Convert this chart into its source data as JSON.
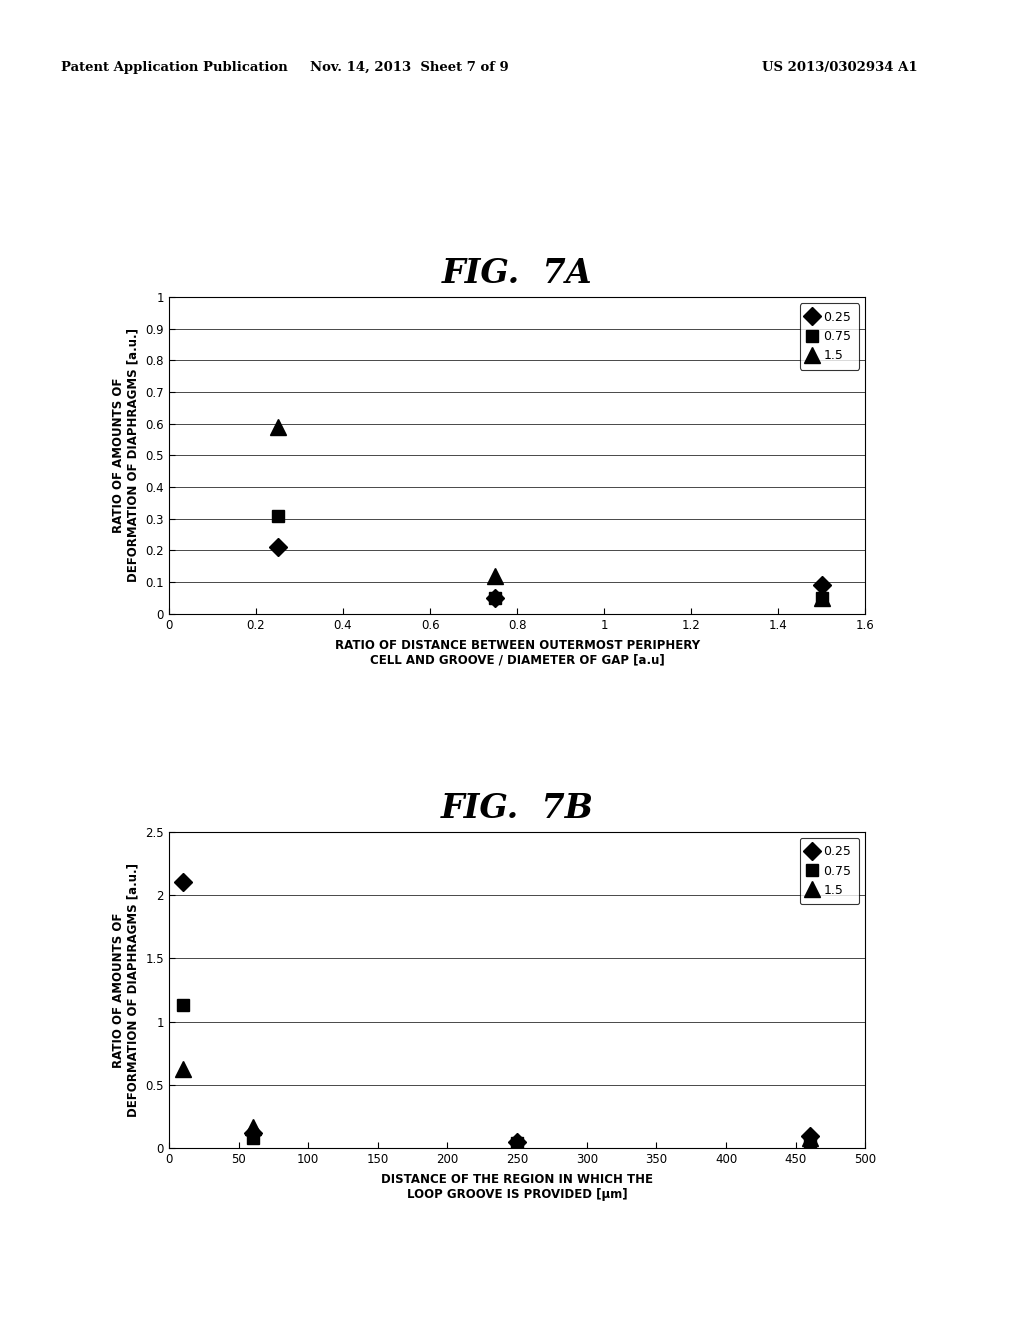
{
  "header_left": "Patent Application Publication",
  "header_middle": "Nov. 14, 2013  Sheet 7 of 9",
  "header_right": "US 2013/0302934 A1",
  "fig7a": {
    "title": "FIG.  7A",
    "xlabel": "RATIO OF DISTANCE BETWEEN OUTERMOST PERIPHERY\nCELL AND GROOVE / DIAMETER OF GAP [a.u]",
    "ylabel": "RATIO OF AMOUNTS OF\nDEFORMATION OF DIAPHRAGMS [a.u.]",
    "xlim": [
      0,
      1.6
    ],
    "ylim": [
      0,
      1.0
    ],
    "xticks": [
      0,
      0.2,
      0.4,
      0.6,
      0.8,
      1.0,
      1.2,
      1.4,
      1.6
    ],
    "yticks": [
      0,
      0.1,
      0.2,
      0.3,
      0.4,
      0.5,
      0.6,
      0.7,
      0.8,
      0.9,
      1.0
    ],
    "xtick_labels": [
      "0",
      "0.2",
      "0.4",
      "0.6",
      "0.8",
      "1",
      "1.2",
      "1.4",
      "1.6"
    ],
    "ytick_labels": [
      "0",
      "0.1",
      "0.2",
      "0.3",
      "0.4",
      "0.5",
      "0.6",
      "0.7",
      "0.8",
      "0.9",
      "1"
    ],
    "series": [
      {
        "label": "0.25",
        "marker": "D",
        "x": [
          0.25,
          0.75,
          1.5
        ],
        "y": [
          0.21,
          0.05,
          0.09
        ]
      },
      {
        "label": "0.75",
        "marker": "s",
        "x": [
          0.25,
          0.75,
          1.5
        ],
        "y": [
          0.31,
          0.05,
          0.05
        ]
      },
      {
        "label": "1.5",
        "marker": "^",
        "x": [
          0.25,
          0.75,
          1.5
        ],
        "y": [
          0.59,
          0.12,
          0.05
        ]
      }
    ]
  },
  "fig7b": {
    "title": "FIG.  7B",
    "xlabel": "DISTANCE OF THE REGION IN WHICH THE\nLOOP GROOVE IS PROVIDED [μm]",
    "ylabel": "RATIO OF AMOUNTS OF\nDEFORMATION OF DIAPHRAGMS [a.u.]",
    "xlim": [
      0,
      500
    ],
    "ylim": [
      0,
      2.5
    ],
    "xticks": [
      0,
      50,
      100,
      150,
      200,
      250,
      300,
      350,
      400,
      450,
      500
    ],
    "yticks": [
      0,
      0.5,
      1.0,
      1.5,
      2.0,
      2.5
    ],
    "xtick_labels": [
      "0",
      "50",
      "100",
      "150",
      "200",
      "250",
      "300",
      "350",
      "400",
      "450",
      "500"
    ],
    "ytick_labels": [
      "0",
      "0.5",
      "1",
      "1.5",
      "2",
      "2.5"
    ],
    "series": [
      {
        "label": "0.25",
        "marker": "D",
        "x": [
          10,
          60,
          250,
          460
        ],
        "y": [
          2.1,
          0.12,
          0.05,
          0.1
        ]
      },
      {
        "label": "0.75",
        "marker": "s",
        "x": [
          10,
          60,
          250,
          460
        ],
        "y": [
          1.13,
          0.08,
          0.04,
          0.05
        ]
      },
      {
        "label": "1.5",
        "marker": "^",
        "x": [
          10,
          60,
          250,
          460
        ],
        "y": [
          0.63,
          0.17,
          0.03,
          0.08
        ]
      }
    ]
  },
  "marker_color": "#000000",
  "marker_size_diamond": 9,
  "marker_size_square": 9,
  "marker_size_triangle": 11,
  "legend_fontsize": 9,
  "axis_label_fontsize": 8.5,
  "tick_fontsize": 8.5,
  "title_fontsize": 24,
  "header_fontsize": 9.5,
  "background_color": "#ffffff"
}
